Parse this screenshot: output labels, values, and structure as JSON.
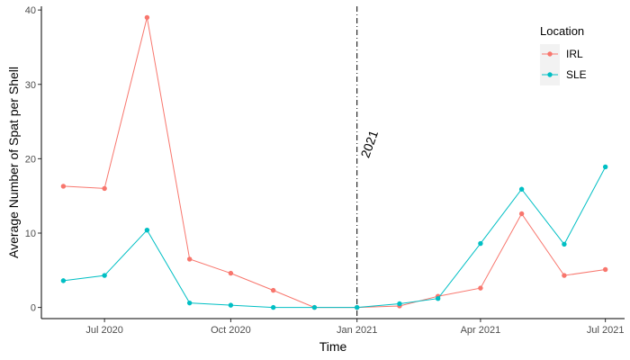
{
  "chart_data": {
    "type": "line",
    "xlabel": "Time",
    "ylabel": "Average Number of Spat per Shell",
    "xlim": [
      "2020-05-16",
      "2021-07-15"
    ],
    "ylim": [
      -1.5,
      40.5
    ],
    "x_ticks": [
      {
        "date": "2020-07-01",
        "label": "Jul 2020"
      },
      {
        "date": "2020-10-01",
        "label": "Oct 2020"
      },
      {
        "date": "2021-01-01",
        "label": "Jan 2021"
      },
      {
        "date": "2021-04-01",
        "label": "Apr 2021"
      },
      {
        "date": "2021-07-01",
        "label": "Jul 2021"
      }
    ],
    "y_ticks": [
      0,
      10,
      20,
      30,
      40
    ],
    "grid": false,
    "legend": {
      "title": "Location",
      "position": "top-right"
    },
    "series": [
      {
        "name": "IRL",
        "color": "#F8766D",
        "points": [
          [
            "2020-06-01",
            16.3
          ],
          [
            "2020-07-01",
            16.0
          ],
          [
            "2020-08-01",
            39.0
          ],
          [
            "2020-09-01",
            6.5
          ],
          [
            "2020-10-01",
            4.6
          ],
          [
            "2020-11-01",
            2.3
          ],
          [
            "2020-12-01",
            0.0
          ],
          [
            "2021-01-01",
            0.0
          ],
          [
            "2021-02-01",
            0.2
          ],
          [
            "2021-03-01",
            1.5
          ],
          [
            "2021-04-01",
            2.6
          ],
          [
            "2021-05-01",
            12.6
          ],
          [
            "2021-06-01",
            4.3
          ],
          [
            "2021-07-01",
            5.1
          ]
        ]
      },
      {
        "name": "SLE",
        "color": "#00BFC4",
        "points": [
          [
            "2020-06-01",
            3.6
          ],
          [
            "2020-07-01",
            4.3
          ],
          [
            "2020-08-01",
            10.4
          ],
          [
            "2020-09-01",
            0.6
          ],
          [
            "2020-10-01",
            0.3
          ],
          [
            "2020-11-01",
            0.0
          ],
          [
            "2020-12-01",
            0.0
          ],
          [
            "2021-01-01",
            0.0
          ],
          [
            "2021-02-01",
            0.5
          ],
          [
            "2021-03-01",
            1.2
          ],
          [
            "2021-04-01",
            8.6
          ],
          [
            "2021-05-01",
            15.9
          ],
          [
            "2021-06-01",
            8.5
          ],
          [
            "2021-07-01",
            18.9
          ]
        ]
      }
    ],
    "annotation": {
      "text": "2021",
      "x": "2021-01-01",
      "y": 20,
      "line": "vertical dash-dot"
    }
  }
}
